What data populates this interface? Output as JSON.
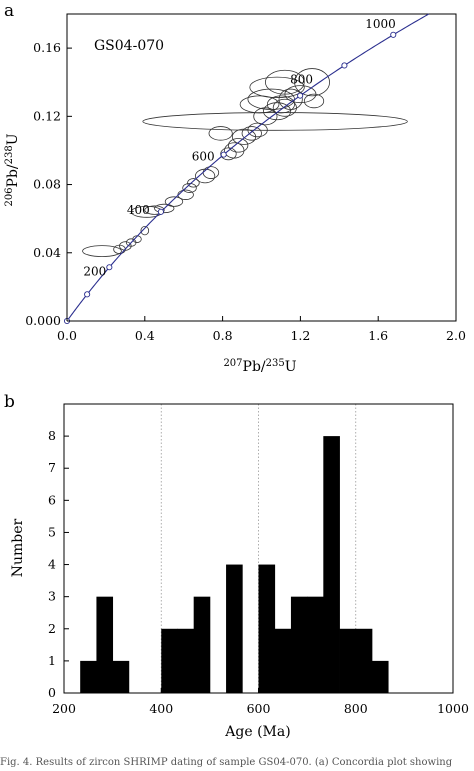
{
  "chart_data": [
    {
      "panel_label": "a",
      "type": "scatter",
      "subtype": "concordia",
      "sample_label": "GS04-070",
      "xlabel_parts": {
        "sup1": "207",
        "base1": "Pb/",
        "sup2": "235",
        "base2": "U"
      },
      "ylabel_parts": {
        "sup1": "206",
        "base1": "Pb/",
        "sup2": "238",
        "base2": "U"
      },
      "xlim": [
        0.0,
        2.0
      ],
      "ylim": [
        0.0,
        0.18
      ],
      "x_ticks": [
        "0.0",
        "0.4",
        "0.8",
        "1.2",
        "1.6",
        "2.0"
      ],
      "y_ticks": [
        "0.000",
        "0.04",
        "0.08",
        "0.12",
        "0.16"
      ],
      "concordia_color": "#2b2f8f",
      "age_markers": [
        {
          "age": "0"
        },
        {
          "age": "100"
        },
        {
          "age": "200",
          "label": "200"
        },
        {
          "age": "400",
          "label": "400"
        },
        {
          "age": "600",
          "label": "600"
        },
        {
          "age": "800",
          "label": "800"
        },
        {
          "age": "900"
        },
        {
          "age": "1000",
          "label": "1000"
        }
      ],
      "ellipses": [
        {
          "x": 0.18,
          "y": 0.041,
          "rx": 0.1,
          "ry": 0.0032
        },
        {
          "x": 0.27,
          "y": 0.042,
          "rx": 0.03,
          "ry": 0.0025
        },
        {
          "x": 0.3,
          "y": 0.044,
          "rx": 0.03,
          "ry": 0.0025
        },
        {
          "x": 0.33,
          "y": 0.046,
          "rx": 0.025,
          "ry": 0.0022
        },
        {
          "x": 0.36,
          "y": 0.048,
          "rx": 0.022,
          "ry": 0.002
        },
        {
          "x": 0.4,
          "y": 0.053,
          "rx": 0.02,
          "ry": 0.0025
        },
        {
          "x": 0.41,
          "y": 0.064,
          "rx": 0.08,
          "ry": 0.0032
        },
        {
          "x": 0.45,
          "y": 0.065,
          "rx": 0.05,
          "ry": 0.0025
        },
        {
          "x": 0.5,
          "y": 0.066,
          "rx": 0.05,
          "ry": 0.0025
        },
        {
          "x": 0.55,
          "y": 0.07,
          "rx": 0.045,
          "ry": 0.0028
        },
        {
          "x": 0.61,
          "y": 0.074,
          "rx": 0.04,
          "ry": 0.0028
        },
        {
          "x": 0.63,
          "y": 0.078,
          "rx": 0.035,
          "ry": 0.0027
        },
        {
          "x": 0.65,
          "y": 0.081,
          "rx": 0.03,
          "ry": 0.0025
        },
        {
          "x": 0.71,
          "y": 0.085,
          "rx": 0.05,
          "ry": 0.004
        },
        {
          "x": 0.74,
          "y": 0.087,
          "rx": 0.04,
          "ry": 0.0035
        },
        {
          "x": 0.83,
          "y": 0.098,
          "rx": 0.04,
          "ry": 0.0035
        },
        {
          "x": 0.86,
          "y": 0.1,
          "rx": 0.05,
          "ry": 0.0045
        },
        {
          "x": 0.88,
          "y": 0.103,
          "rx": 0.05,
          "ry": 0.004
        },
        {
          "x": 0.91,
          "y": 0.108,
          "rx": 0.06,
          "ry": 0.0045
        },
        {
          "x": 0.95,
          "y": 0.11,
          "rx": 0.05,
          "ry": 0.004
        },
        {
          "x": 0.98,
          "y": 0.112,
          "rx": 0.05,
          "ry": 0.004
        },
        {
          "x": 0.79,
          "y": 0.11,
          "rx": 0.06,
          "ry": 0.004
        },
        {
          "x": 1.07,
          "y": 0.117,
          "rx": 0.68,
          "ry": 0.0052
        },
        {
          "x": 1.02,
          "y": 0.12,
          "rx": 0.06,
          "ry": 0.005
        },
        {
          "x": 1.08,
          "y": 0.123,
          "rx": 0.07,
          "ry": 0.005
        },
        {
          "x": 1.12,
          "y": 0.125,
          "rx": 0.06,
          "ry": 0.005
        },
        {
          "x": 1.1,
          "y": 0.127,
          "rx": 0.07,
          "ry": 0.005
        },
        {
          "x": 0.99,
          "y": 0.127,
          "rx": 0.1,
          "ry": 0.005
        },
        {
          "x": 1.05,
          "y": 0.13,
          "rx": 0.12,
          "ry": 0.006
        },
        {
          "x": 1.15,
          "y": 0.13,
          "rx": 0.06,
          "ry": 0.006
        },
        {
          "x": 1.2,
          "y": 0.133,
          "rx": 0.08,
          "ry": 0.005
        },
        {
          "x": 1.08,
          "y": 0.137,
          "rx": 0.14,
          "ry": 0.006
        },
        {
          "x": 1.12,
          "y": 0.14,
          "rx": 0.1,
          "ry": 0.007
        },
        {
          "x": 1.26,
          "y": 0.14,
          "rx": 0.09,
          "ry": 0.008
        },
        {
          "x": 1.27,
          "y": 0.129,
          "rx": 0.05,
          "ry": 0.004
        }
      ]
    },
    {
      "panel_label": "b",
      "type": "bar",
      "subtype": "histogram",
      "xlabel": "Age (Ma)",
      "ylabel": "Number",
      "xlim": [
        200,
        1000
      ],
      "ylim": [
        0,
        9
      ],
      "x_ticks": [
        "200",
        "400",
        "600",
        "800",
        "1000"
      ],
      "y_ticks": [
        "0",
        "1",
        "2",
        "3",
        "4",
        "5",
        "6",
        "7",
        "8"
      ],
      "gridlines_x": [
        400,
        600,
        800
      ],
      "bin_width": 33.33,
      "bins": [
        {
          "start": 233.3,
          "count": 1
        },
        {
          "start": 266.7,
          "count": 3
        },
        {
          "start": 300.0,
          "count": 1
        },
        {
          "start": 400.0,
          "count": 2
        },
        {
          "start": 433.3,
          "count": 2
        },
        {
          "start": 466.7,
          "count": 3
        },
        {
          "start": 533.3,
          "count": 4
        },
        {
          "start": 600.0,
          "count": 4
        },
        {
          "start": 633.3,
          "count": 2
        },
        {
          "start": 666.7,
          "count": 3
        },
        {
          "start": 700.0,
          "count": 3
        },
        {
          "start": 733.3,
          "count": 8
        },
        {
          "start": 766.7,
          "count": 2
        },
        {
          "start": 800.0,
          "count": 2
        },
        {
          "start": 833.3,
          "count": 1
        }
      ]
    }
  ],
  "caption": "Fig. 4. Results of zircon SHRIMP dating of sample GS04-070. (a) Concordia plot showing"
}
